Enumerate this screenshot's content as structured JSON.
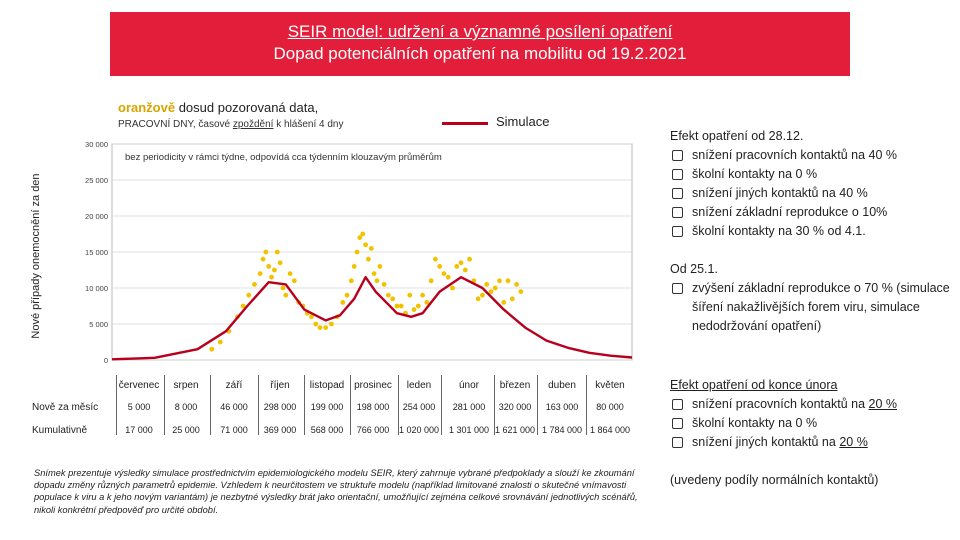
{
  "title": {
    "line1": "SEIR model: udržení a významné posílení opatření",
    "line2": "Dopad potenciálních opatření na mobilitu od 19.2.2021"
  },
  "legend": {
    "observed_colored": "oranžově",
    "observed_rest": " dosud pozorovaná data,",
    "observed_sub_a": "PRACOVNÍ DNY, časové ",
    "observed_sub_b": "zpoždění",
    "observed_sub_c": " k hlášení 4 dny",
    "simulation": "Simulace"
  },
  "colors": {
    "banner": "#e31e3a",
    "observed": "#f2c200",
    "simulation": "#b8001e"
  },
  "chart_note": "bez periodicity v rámci týdne, odpovídá cca týdenním klouzavým průměrům",
  "chart_data": {
    "type": "line",
    "ylabel": "Nové případy onemocnění za den",
    "ylim": [
      0,
      30000
    ],
    "yticks": [
      0,
      5000,
      10000,
      15000,
      20000,
      25000,
      30000
    ],
    "ytick_labels": [
      "0",
      "5 000",
      "10 000",
      "15 000",
      "20 000",
      "25 000",
      "30 000"
    ],
    "x_domain_days": [
      0,
      365
    ],
    "categories": [
      "červenec",
      "srpen",
      "září",
      "říjen",
      "listopad",
      "prosinec",
      "leden",
      "únor",
      "březen",
      "duben",
      "květen"
    ],
    "series": [
      {
        "name": "Simulace",
        "style": "line",
        "x": [
          0,
          30,
          60,
          80,
          95,
          110,
          122,
          135,
          150,
          160,
          170,
          178,
          185,
          200,
          210,
          218,
          230,
          245,
          260,
          275,
          290,
          305,
          320,
          335,
          350,
          365
        ],
        "y": [
          100,
          300,
          1500,
          4000,
          7500,
          10800,
          10500,
          7000,
          5500,
          6200,
          8500,
          11500,
          9500,
          6500,
          6000,
          6500,
          9500,
          11500,
          10000,
          7000,
          4500,
          2700,
          1700,
          1000,
          600,
          350
        ]
      },
      {
        "name": "Pozorovaná data",
        "style": "scatter",
        "x": [
          70,
          76,
          82,
          88,
          92,
          96,
          100,
          104,
          106,
          108,
          110,
          112,
          114,
          116,
          118,
          120,
          122,
          125,
          128,
          131,
          134,
          137,
          140,
          143,
          146,
          150,
          154,
          158,
          162,
          165,
          168,
          170,
          172,
          174,
          176,
          178,
          180,
          182,
          184,
          186,
          188,
          191,
          194,
          197,
          200,
          203,
          206,
          209,
          212,
          215,
          218,
          221,
          224,
          227,
          230,
          233,
          236,
          239,
          242,
          245,
          248,
          251,
          254,
          257,
          260,
          263,
          266,
          269,
          272,
          275,
          278,
          281,
          284,
          287
        ],
        "y": [
          1500,
          2500,
          4000,
          6000,
          7500,
          9000,
          10500,
          12000,
          14000,
          15000,
          13000,
          11500,
          12500,
          15000,
          13500,
          10000,
          9000,
          12000,
          11000,
          8000,
          7500,
          6500,
          6000,
          5000,
          4500,
          4500,
          5000,
          6000,
          8000,
          9000,
          11000,
          13000,
          15000,
          17000,
          17500,
          16000,
          14000,
          15500,
          12000,
          11000,
          13000,
          10500,
          9000,
          8500,
          7500,
          7500,
          6500,
          9000,
          7000,
          7500,
          9000,
          8000,
          11000,
          14000,
          13000,
          12000,
          11500,
          10000,
          13000,
          13500,
          12500,
          14000,
          11000,
          8500,
          9000,
          10500,
          9500,
          10000,
          11000,
          8000,
          11000,
          8500,
          10500,
          9500
        ]
      }
    ]
  },
  "table": {
    "row_labels": [
      "Nově za měsíc",
      "Kumulativně"
    ],
    "months": [
      "červenec",
      "srpen",
      "září",
      "říjen",
      "listopad",
      "prosinec",
      "leden",
      "únor",
      "březen",
      "duben",
      "květen"
    ],
    "monthly": [
      "5 000",
      "8 000",
      "46 000",
      "298 000",
      "199 000",
      "198 000",
      "254 000",
      "281 000",
      "320 000",
      "163 000",
      "80 000"
    ],
    "cumulative": [
      "17 000",
      "25 000",
      "71 000",
      "369 000",
      "568 000",
      "766 000",
      "1 020 000",
      "1 301 000",
      "1 621 000",
      "1 784 000",
      "1 864 000"
    ]
  },
  "footnote": "Snímek prezentuje výsledky simulace prostřednictvím epidemiologického modelu SEIR, který zahrnuje vybrané předpoklady a slouží ke zkoumání dopadu změny různých parametrů epidemie. Vzhledem k neurčitostem ve struktuře modelu (například limitované znalosti o skutečné vnímavosti populace k viru a k jeho novým variantám) je nezbytné výsledky brát jako orientační, umožňující zejména celkové srovnávání jednotlivých scénářů, nikoli konkrétní předpověď pro určité období.",
  "right_panel": {
    "block1_head": "Efekt opatření od 28.12.",
    "block1_items": [
      "snížení pracovních kontaktů na 40 %",
      "školní kontakty na 0 %",
      "snížení jiných kontaktů na 40 %",
      "snížení základní reprodukce o 10%",
      "školní kontakty na 30 % od 4.1."
    ],
    "block2_head": "Od 25.1.",
    "block2_items": [
      "zvýšení základní reprodukce o 70 % (simulace šíření nakažlivějších forem viru, simulace nedodržování opatření)"
    ],
    "block3_head": "Efekt opatření od konce února",
    "block3_items_a": [
      "snížení pracovních kontaktů na ",
      "školní kontakty na 0 %",
      "snížení jiných kontaktů na "
    ],
    "block3_values": [
      "20 %",
      "20 %"
    ],
    "note": "(uvedeny podíly normálních kontaktů)"
  }
}
